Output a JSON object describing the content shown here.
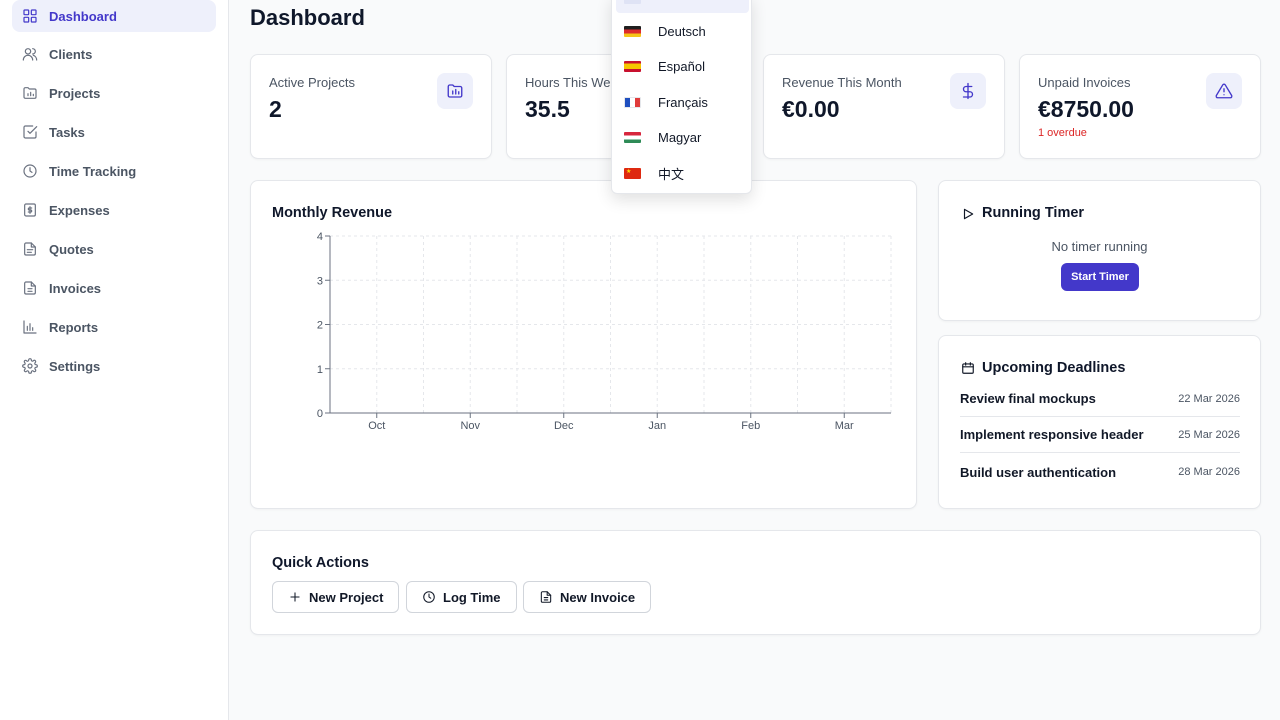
{
  "sidebar": {
    "items": [
      {
        "label": "Dashboard",
        "icon": "dashboard-icon",
        "active": true
      },
      {
        "label": "Clients",
        "icon": "users-icon"
      },
      {
        "label": "Projects",
        "icon": "folder-icon"
      },
      {
        "label": "Tasks",
        "icon": "checkbox-icon"
      },
      {
        "label": "Time Tracking",
        "icon": "clock-icon"
      },
      {
        "label": "Expenses",
        "icon": "receipt-icon"
      },
      {
        "label": "Quotes",
        "icon": "document-icon"
      },
      {
        "label": "Invoices",
        "icon": "invoice-icon"
      },
      {
        "label": "Reports",
        "icon": "bar-chart-icon"
      },
      {
        "label": "Settings",
        "icon": "gear-icon"
      }
    ]
  },
  "page": {
    "title": "Dashboard"
  },
  "stats": [
    {
      "label": "Active Projects",
      "value": "2",
      "icon": "folder-chart-icon"
    },
    {
      "label": "Hours This Week",
      "value": "35.5",
      "icon": "clock-icon"
    },
    {
      "label": "Revenue This Month",
      "value": "€0.00",
      "icon": "dollar-icon"
    },
    {
      "label": "Unpaid Invoices",
      "value": "€8750.00",
      "sub": "1 overdue",
      "icon": "warning-icon"
    }
  ],
  "revenue_chart": {
    "title": "Monthly Revenue"
  },
  "chart_data": {
    "type": "line",
    "title": "Monthly Revenue",
    "categories": [
      "Oct",
      "Nov",
      "Dec",
      "Jan",
      "Feb",
      "Mar"
    ],
    "values": [
      0,
      0,
      0,
      0,
      0,
      0
    ],
    "y_ticks": [
      "0",
      "1",
      "2",
      "3",
      "4"
    ],
    "ylim": [
      0,
      4
    ],
    "grid": true,
    "xlabel": "",
    "ylabel": ""
  },
  "timer": {
    "title": "Running Timer",
    "message": "No timer running",
    "button_label": "Start Timer"
  },
  "deadlines": {
    "title": "Upcoming Deadlines",
    "items": [
      {
        "name": "Review final mockups",
        "date": "22 Mar 2026"
      },
      {
        "name": "Implement responsive header",
        "date": "25 Mar 2026"
      },
      {
        "name": "Build user authentication",
        "date": "28 Mar 2026"
      }
    ]
  },
  "quick_actions": {
    "title": "Quick Actions",
    "buttons": [
      {
        "label": "New Project",
        "icon": "plus-icon"
      },
      {
        "label": "Log Time",
        "icon": "clock-icon"
      },
      {
        "label": "New Invoice",
        "icon": "document-icon"
      }
    ]
  },
  "language_dropdown": {
    "items": [
      {
        "label": "",
        "flag": "english-flag-icon",
        "highlighted": true
      },
      {
        "label": "Deutsch",
        "flag": "german-flag-icon"
      },
      {
        "label": "Español",
        "flag": "spanish-flag-icon"
      },
      {
        "label": "Français",
        "flag": "french-flag-icon"
      },
      {
        "label": "Magyar",
        "flag": "hungarian-flag-icon"
      },
      {
        "label": "中文",
        "flag": "chinese-flag-icon"
      }
    ]
  },
  "colors": {
    "accent": "#4338ca",
    "accent_light": "#eef0fb",
    "danger": "#dc2626",
    "border": "#e5e7eb"
  }
}
